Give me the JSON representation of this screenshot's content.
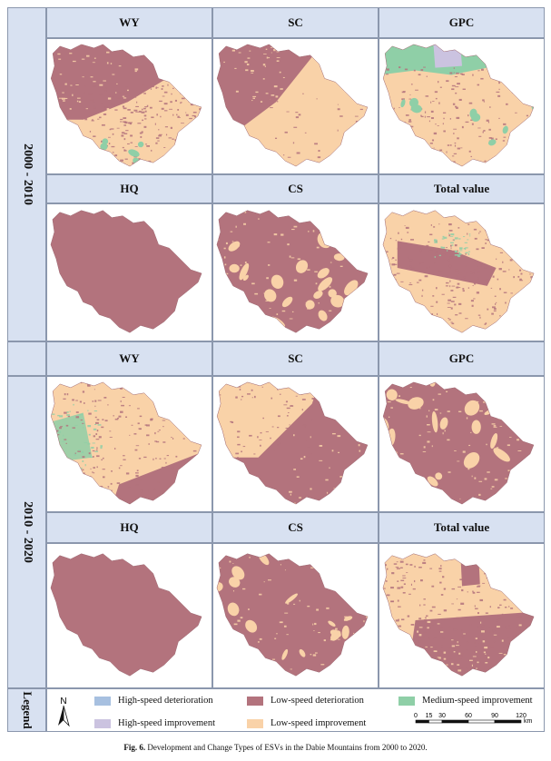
{
  "periods": [
    {
      "label": "2000 - 2010",
      "rows": [
        [
          "WY",
          "SC",
          "GPC"
        ],
        [
          "HQ",
          "CS",
          "Total value"
        ]
      ]
    },
    {
      "label": "2010 - 2020",
      "rows": [
        [
          "WY",
          "SC",
          "GPC"
        ],
        [
          "HQ",
          "CS",
          "Total value"
        ]
      ]
    }
  ],
  "legend": {
    "title": "Legend",
    "items": [
      {
        "label": "High-speed deterioration",
        "color": "#a7c0e0"
      },
      {
        "label": "Low-speed deterioration",
        "color": "#b3737d"
      },
      {
        "label": "Medium-speed improvement",
        "color": "#8fcfa7"
      },
      {
        "label": "High-speed improvement",
        "color": "#cbc3e0"
      },
      {
        "label": "Low-speed improvement",
        "color": "#f9d2a8"
      }
    ],
    "north": "N",
    "scale_ticks": [
      "0",
      "15",
      "30",
      "60",
      "90",
      "120"
    ],
    "scale_unit": "km"
  },
  "caption": {
    "label": "Fig. 6.",
    "text": "Development and Change Types of ESVs in the Dabie Mountains from 2000 to 2020."
  }
}
